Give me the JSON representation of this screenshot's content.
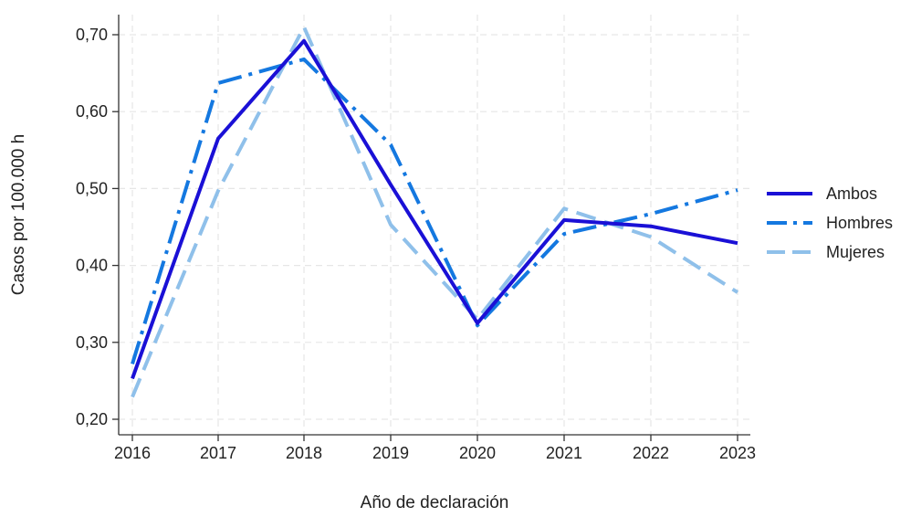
{
  "chart_data": {
    "type": "line",
    "title": "",
    "xlabel": "Año de declaración",
    "ylabel": "Casos por 100.000 h",
    "x": [
      2016,
      2017,
      2018,
      2019,
      2020,
      2021,
      2022,
      2023
    ],
    "x_tick_labels": [
      "2016",
      "2017",
      "2018",
      "2019",
      "2020",
      "2021",
      "2022",
      "2023"
    ],
    "ylim": [
      0.19,
      0.73
    ],
    "y_ticks": [
      0.2,
      0.3,
      0.4,
      0.5,
      0.6,
      0.7
    ],
    "y_tick_labels": [
      "0,20",
      "0,30",
      "0,40",
      "0,50",
      "0,60",
      "0,70"
    ],
    "grid": true,
    "legend_position": "right",
    "series": [
      {
        "name": "Ambos",
        "values": [
          0.253,
          0.565,
          0.692,
          0.505,
          0.325,
          0.459,
          0.451,
          0.429
        ],
        "color": "#1a10d6",
        "style": "solid"
      },
      {
        "name": "Hombres",
        "values": [
          0.272,
          0.637,
          0.668,
          0.557,
          0.322,
          0.441,
          0.467,
          0.498
        ],
        "color": "#1478e0",
        "style": "dash-dot"
      },
      {
        "name": "Mujeres",
        "values": [
          0.229,
          0.497,
          0.71,
          0.453,
          0.33,
          0.474,
          0.437,
          0.365
        ],
        "color": "#8fc0ea",
        "style": "dashed"
      }
    ]
  }
}
